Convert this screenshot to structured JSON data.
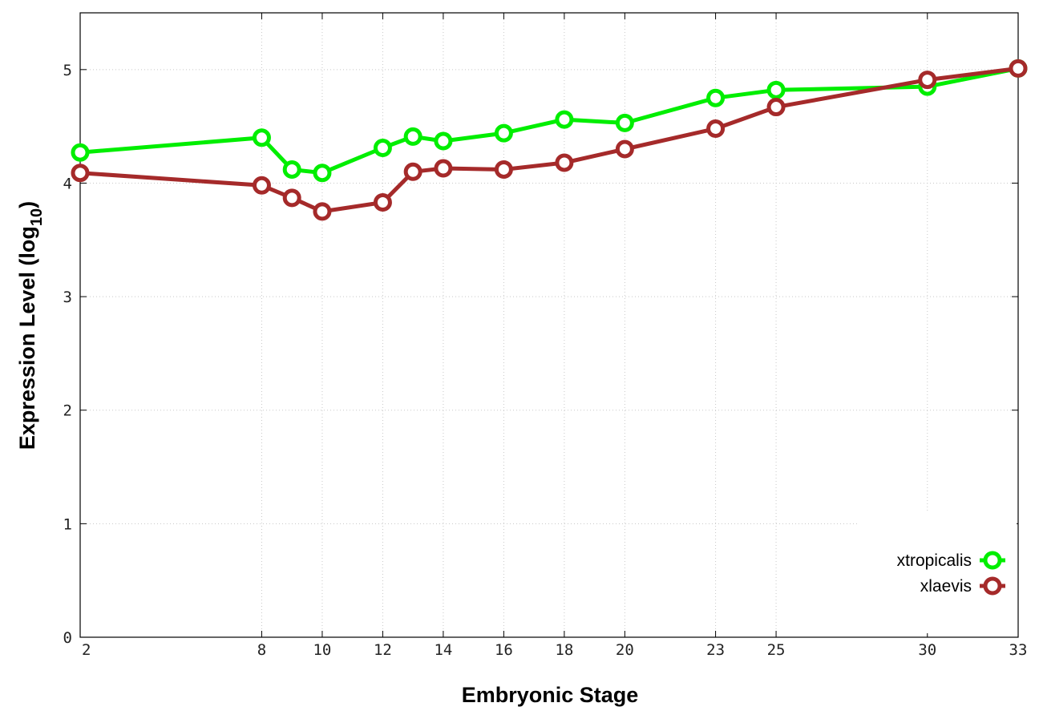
{
  "chart_data": {
    "type": "line",
    "xlabel": "Embryonic Stage",
    "ylabel_main": "Expression Level (log",
    "ylabel_sub": "10",
    "ylabel_close": ")",
    "xlim": [
      2,
      33
    ],
    "ylim": [
      0,
      5.5
    ],
    "x_ticks": [
      2,
      8,
      10,
      12,
      14,
      16,
      18,
      20,
      23,
      25,
      30,
      33
    ],
    "x_tick_labels": [
      "2",
      "8",
      "10",
      "12",
      "14",
      "16",
      "18",
      "20",
      "23",
      "25",
      "30",
      "33"
    ],
    "y_ticks": [
      0,
      1,
      2,
      3,
      4,
      5
    ],
    "y_tick_labels": [
      "0",
      "1",
      "2",
      "3",
      "4",
      "5"
    ],
    "grid": true,
    "legend_position": "bottom-right",
    "x": [
      2,
      8,
      9,
      10,
      12,
      13,
      14,
      16,
      18,
      20,
      23,
      25,
      30,
      33
    ],
    "series": [
      {
        "name": "xtropicalis",
        "color": "#00ee00",
        "values": [
          4.27,
          4.4,
          4.12,
          4.09,
          4.31,
          4.41,
          4.37,
          4.44,
          4.56,
          4.53,
          4.75,
          4.82,
          4.85,
          5.01
        ]
      },
      {
        "name": "xlaevis",
        "color": "#a52a2a",
        "values": [
          4.09,
          3.98,
          3.87,
          3.75,
          3.83,
          4.1,
          4.13,
          4.12,
          4.18,
          4.3,
          4.48,
          4.67,
          4.91,
          5.01
        ]
      }
    ]
  }
}
